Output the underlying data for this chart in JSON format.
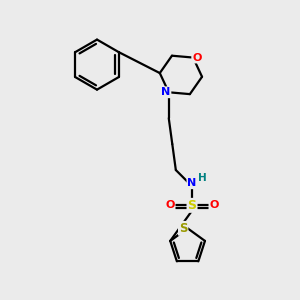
{
  "background_color": "#ebebeb",
  "bond_color": "#000000",
  "atom_colors": {
    "O": "#ff0000",
    "N": "#0000ff",
    "S_sulfonamide": "#cccc00",
    "S_thiophene": "#999900",
    "H": "#008080",
    "C": "#000000"
  },
  "figsize": [
    3.0,
    3.0
  ],
  "dpi": 100
}
